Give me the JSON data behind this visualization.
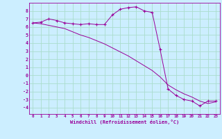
{
  "xlabel": "Windchill (Refroidissement éolien,°C)",
  "bg_color": "#cceeff",
  "line_color": "#990099",
  "grid_color": "#aaddcc",
  "x_ticks": [
    0,
    1,
    2,
    3,
    4,
    5,
    6,
    7,
    8,
    9,
    10,
    11,
    12,
    13,
    14,
    15,
    16,
    17,
    18,
    19,
    20,
    21,
    22,
    23
  ],
  "y_ticks": [
    -4,
    -3,
    -2,
    -1,
    0,
    1,
    2,
    3,
    4,
    5,
    6,
    7,
    8
  ],
  "xlim": [
    -0.5,
    23.5
  ],
  "ylim": [
    -4.8,
    9.0
  ],
  "series1": [
    6.5,
    6.6,
    7.0,
    6.8,
    6.5,
    6.4,
    6.3,
    6.4,
    6.3,
    6.3,
    7.5,
    8.2,
    8.4,
    8.5,
    8.0,
    7.8,
    3.2,
    -1.7,
    -2.5,
    -3.0,
    -3.2,
    -3.8,
    -3.2,
    -3.2
  ],
  "series2": [
    6.5,
    6.4,
    6.2,
    6.0,
    5.8,
    5.4,
    5.0,
    4.7,
    4.3,
    3.9,
    3.4,
    2.9,
    2.4,
    1.8,
    1.2,
    0.6,
    -0.2,
    -1.2,
    -1.8,
    -2.3,
    -2.7,
    -3.2,
    -3.5,
    -3.3
  ]
}
